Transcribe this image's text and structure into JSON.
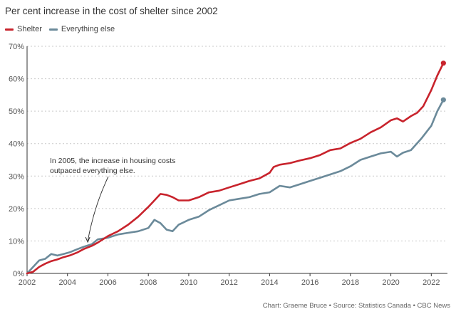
{
  "chart_data": {
    "type": "line",
    "title": "Per cent increase in the cost of shelter since 2002",
    "xlabel": "",
    "ylabel": "",
    "x_ticks": [
      "2002",
      "2004",
      "2006",
      "2008",
      "2010",
      "2012",
      "2014",
      "2016",
      "2018",
      "2020",
      "2022"
    ],
    "y_ticks": [
      "0%",
      "10%",
      "20%",
      "30%",
      "40%",
      "50%",
      "60%",
      "70%"
    ],
    "xlim": [
      2002.0,
      2022.8
    ],
    "ylim": [
      0,
      70
    ],
    "grid": "horizontal dotted",
    "legend_position": "top-left",
    "series": [
      {
        "name": "Shelter",
        "color": "#c8232c",
        "points": [
          [
            2002.0,
            0
          ],
          [
            2002.3,
            0.5
          ],
          [
            2002.6,
            2
          ],
          [
            2002.9,
            3
          ],
          [
            2003.2,
            3.8
          ],
          [
            2003.5,
            4.3
          ],
          [
            2003.8,
            5
          ],
          [
            2004.1,
            5.5
          ],
          [
            2004.5,
            6.5
          ],
          [
            2004.8,
            7.5
          ],
          [
            2005.2,
            8.5
          ],
          [
            2005.5,
            9.5
          ],
          [
            2006.0,
            11.5
          ],
          [
            2006.5,
            13
          ],
          [
            2007.0,
            15
          ],
          [
            2007.5,
            17.5
          ],
          [
            2008.0,
            20.5
          ],
          [
            2008.3,
            22.5
          ],
          [
            2008.6,
            24.5
          ],
          [
            2008.9,
            24.2
          ],
          [
            2009.2,
            23.5
          ],
          [
            2009.5,
            22.5
          ],
          [
            2010.0,
            22.5
          ],
          [
            2010.5,
            23.5
          ],
          [
            2011.0,
            25
          ],
          [
            2011.5,
            25.5
          ],
          [
            2012.0,
            26.5
          ],
          [
            2012.5,
            27.5
          ],
          [
            2013.0,
            28.5
          ],
          [
            2013.5,
            29.3
          ],
          [
            2014.0,
            31
          ],
          [
            2014.2,
            32.8
          ],
          [
            2014.5,
            33.5
          ],
          [
            2015.0,
            34
          ],
          [
            2015.5,
            34.8
          ],
          [
            2016.0,
            35.5
          ],
          [
            2016.5,
            36.5
          ],
          [
            2017.0,
            38
          ],
          [
            2017.5,
            38.5
          ],
          [
            2018.0,
            40.2
          ],
          [
            2018.5,
            41.5
          ],
          [
            2019.0,
            43.5
          ],
          [
            2019.5,
            45
          ],
          [
            2020.0,
            47.2
          ],
          [
            2020.3,
            47.8
          ],
          [
            2020.6,
            46.8
          ],
          [
            2021.0,
            48.5
          ],
          [
            2021.3,
            49.5
          ],
          [
            2021.6,
            51.5
          ],
          [
            2022.0,
            56.5
          ],
          [
            2022.3,
            61
          ],
          [
            2022.6,
            64.8
          ]
        ]
      },
      {
        "name": "Everything else",
        "color": "#6b8a9a",
        "points": [
          [
            2002.0,
            0
          ],
          [
            2002.3,
            2
          ],
          [
            2002.6,
            4
          ],
          [
            2002.9,
            4.5
          ],
          [
            2003.2,
            6
          ],
          [
            2003.5,
            5.5
          ],
          [
            2003.8,
            6
          ],
          [
            2004.1,
            6.5
          ],
          [
            2004.5,
            7.5
          ],
          [
            2004.8,
            8.2
          ],
          [
            2005.2,
            9
          ],
          [
            2005.5,
            10.5
          ],
          [
            2006.0,
            11
          ],
          [
            2006.5,
            12
          ],
          [
            2007.0,
            12.5
          ],
          [
            2007.5,
            13
          ],
          [
            2008.0,
            14
          ],
          [
            2008.3,
            16.5
          ],
          [
            2008.6,
            15.5
          ],
          [
            2008.9,
            13.5
          ],
          [
            2009.2,
            13
          ],
          [
            2009.5,
            15
          ],
          [
            2010.0,
            16.5
          ],
          [
            2010.5,
            17.5
          ],
          [
            2011.0,
            19.5
          ],
          [
            2011.5,
            21
          ],
          [
            2012.0,
            22.5
          ],
          [
            2012.5,
            23
          ],
          [
            2013.0,
            23.5
          ],
          [
            2013.5,
            24.5
          ],
          [
            2014.0,
            25
          ],
          [
            2014.5,
            27
          ],
          [
            2015.0,
            26.5
          ],
          [
            2015.5,
            27.5
          ],
          [
            2016.0,
            28.5
          ],
          [
            2016.5,
            29.5
          ],
          [
            2017.0,
            30.5
          ],
          [
            2017.5,
            31.5
          ],
          [
            2018.0,
            33
          ],
          [
            2018.5,
            35
          ],
          [
            2019.0,
            36
          ],
          [
            2019.5,
            37
          ],
          [
            2020.0,
            37.5
          ],
          [
            2020.3,
            36
          ],
          [
            2020.6,
            37.2
          ],
          [
            2021.0,
            38
          ],
          [
            2021.5,
            41.5
          ],
          [
            2022.0,
            45.5
          ],
          [
            2022.3,
            50
          ],
          [
            2022.6,
            53.5
          ]
        ]
      }
    ],
    "annotation": {
      "text_line1": "In 2005, the increase in housing costs",
      "text_line2": "outpaced everything else.",
      "x": 2005.0,
      "y": 9.0
    }
  },
  "credit": "Chart: Graeme Bruce • Source: Statistics Canada • CBC News"
}
